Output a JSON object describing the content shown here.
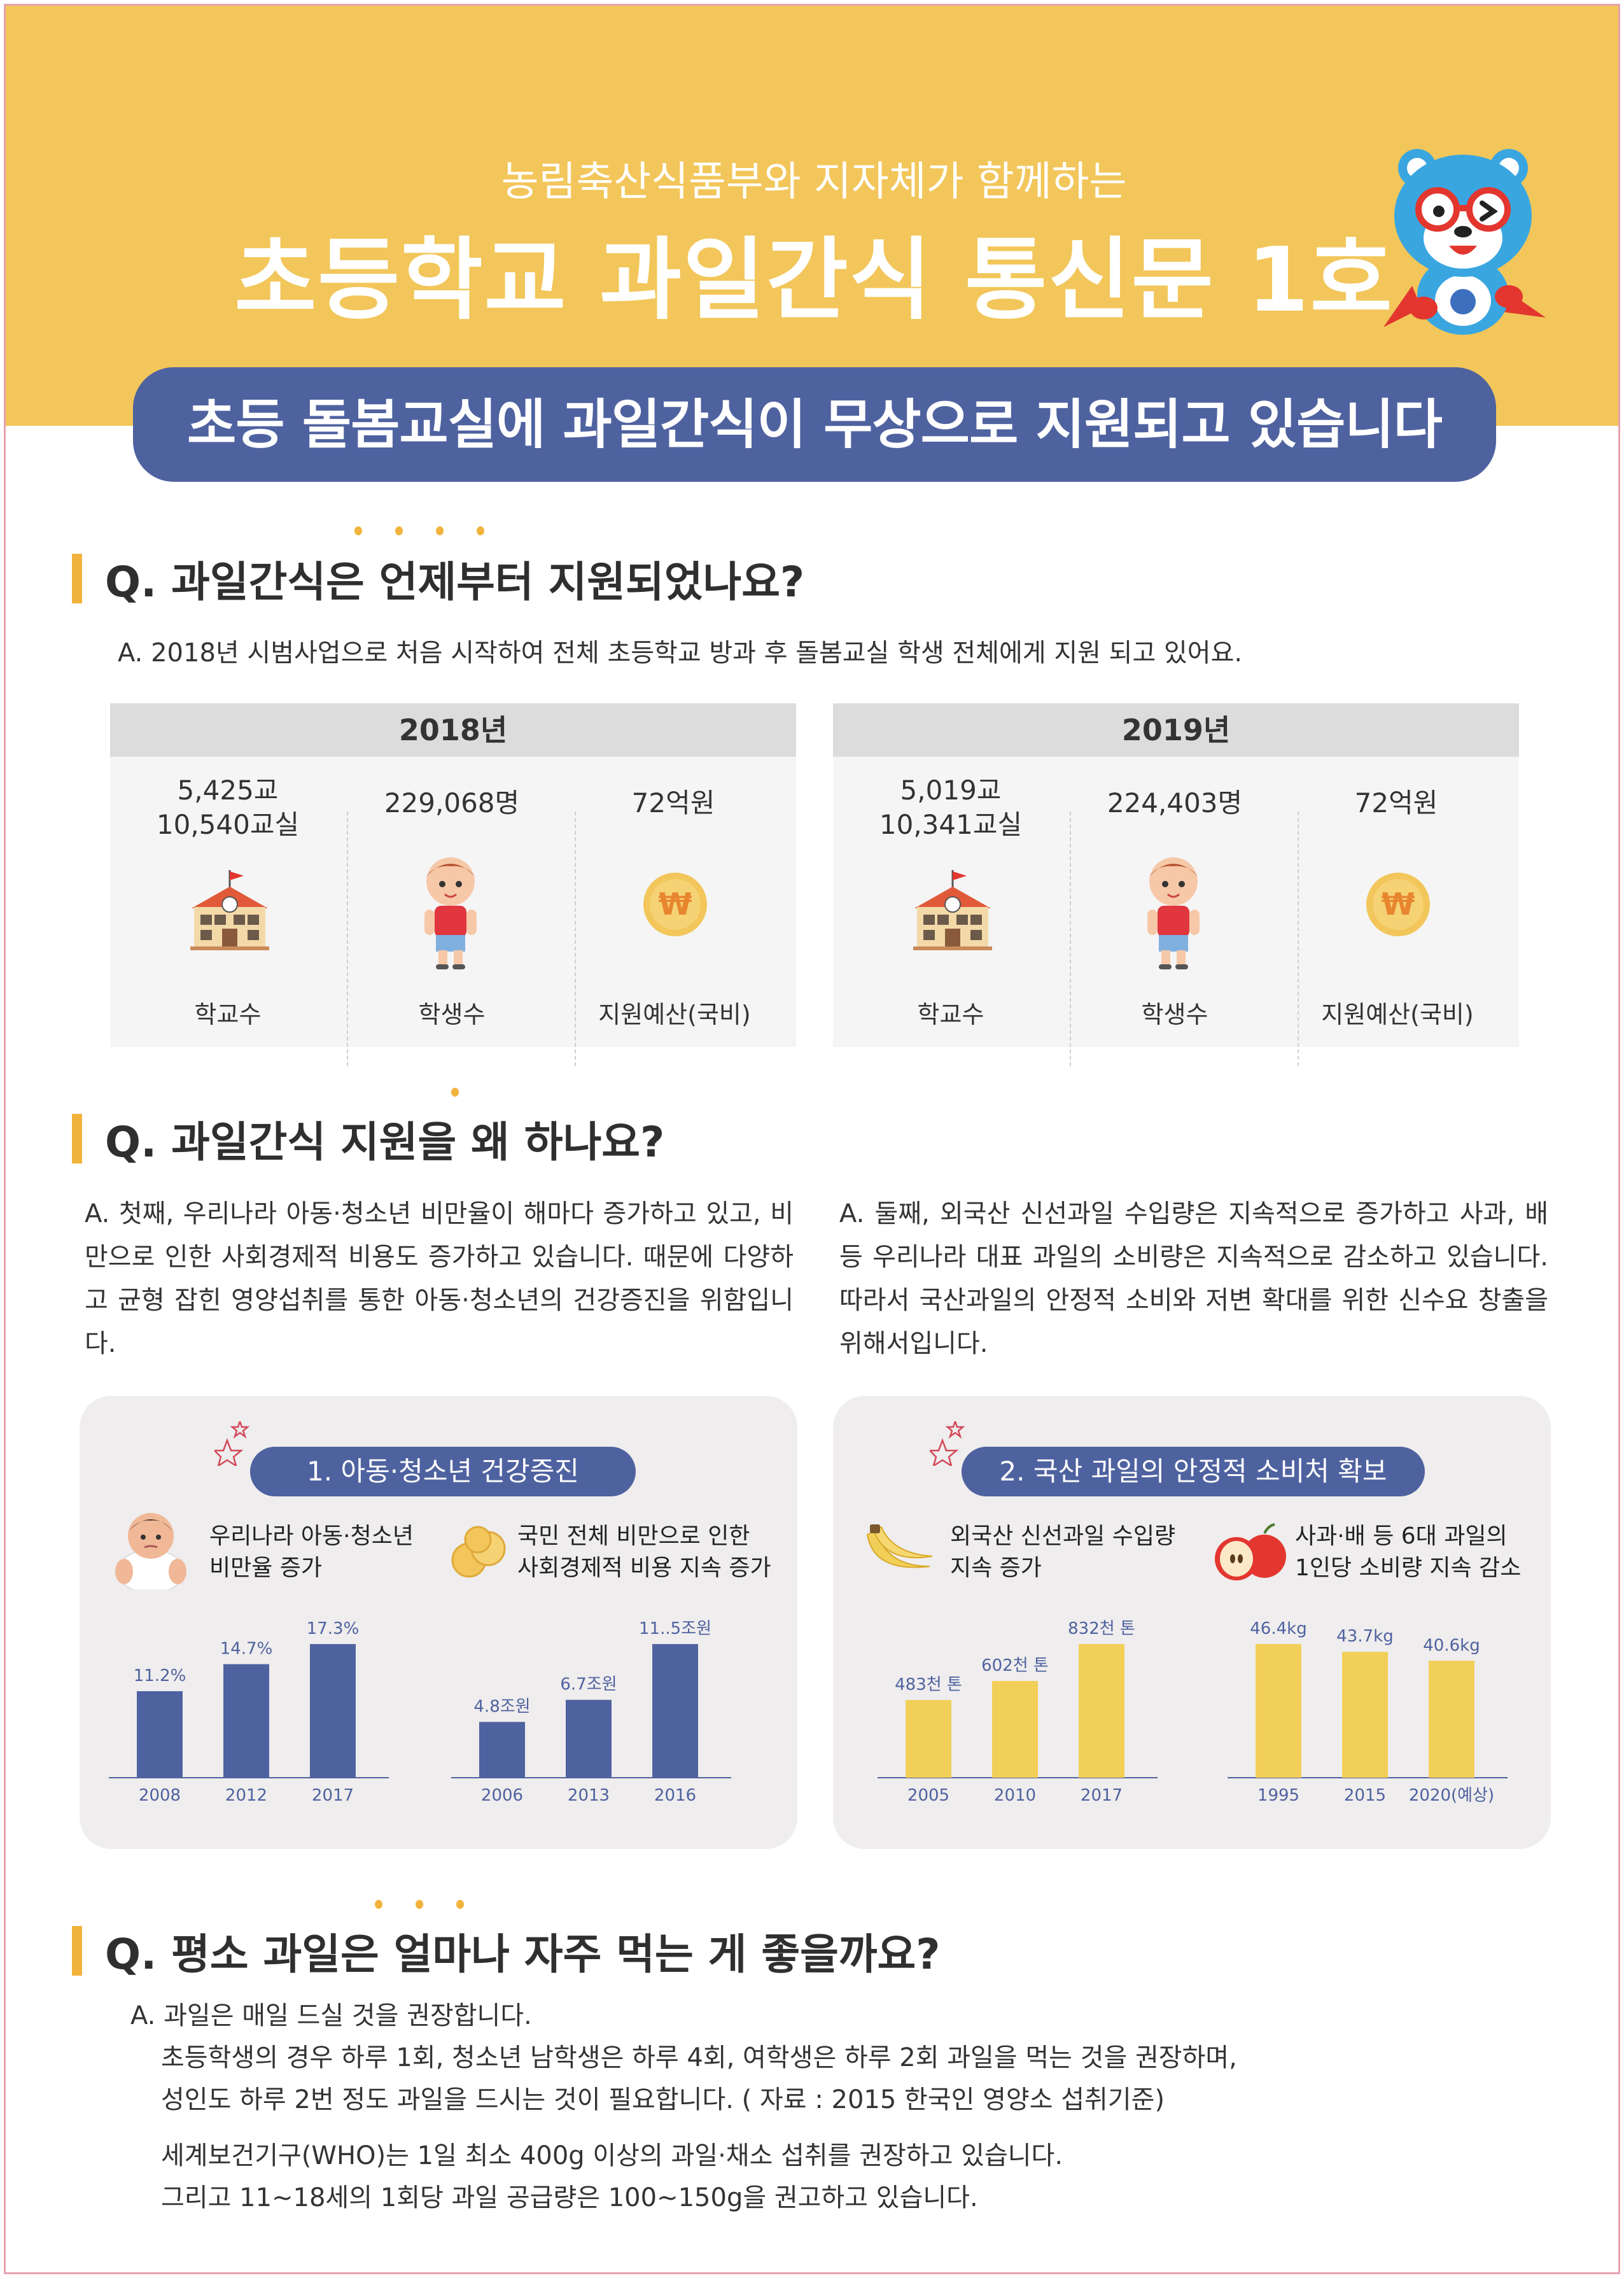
{
  "header": {
    "subtitle": "농림축산식품부와 지자체가 함께하는",
    "title": "초등학교 과일간식 통신문 1호",
    "banner": "초등 돌봄교실에 과일간식이 무상으로 지원되고 있습니다"
  },
  "q1": {
    "question": "Q. 과일간식은 언제부터 지원되었나요?",
    "answer": "A. 2018년 시범사업으로 처음 시작하여 전체 초등학교 방과 후 돌봄교실 학생 전체에게 지원 되고 있어요.",
    "years": [
      {
        "year": "2018년",
        "schools": "5,425교",
        "classes": "10,540교실",
        "students": "229,068명",
        "budget": "72억원"
      },
      {
        "year": "2019년",
        "schools": "5,019교",
        "classes": "10,341교실",
        "students": "224,403명",
        "budget": "72억원"
      }
    ],
    "labels": {
      "schools": "학교수",
      "students": "학생수",
      "budget": "지원예산(국비)"
    }
  },
  "q2": {
    "question": "Q. 과일간식 지원을 왜 하나요?",
    "answer_left": "A. 첫째, 우리나라 아동·청소년 비만율이 해마다 증가하고 있고, 비만으로 인한 사회경제적 비용도 증가하고 있습니다. 때문에 다양하고 균형 잡힌 영양섭취를 통한 아동·청소년의 건강증진을 위함입니다.",
    "answer_right": "A. 둘째, 외국산 신선과일 수입량은 지속적으로 증가하고 사과, 배 등 우리나라 대표 과일의 소비량은 지속적으로 감소하고 있습니다. 따라서 국산과일의 안정적 소비와 저변 확대를 위한 신수요 창출을 위해서입니다.",
    "card1": {
      "title": "1. 아동·청소년 건강증진",
      "item1": [
        "우리나라 아동·청소년",
        "비만율 증가"
      ],
      "item2": [
        "국민 전체 비만으로 인한",
        "사회경제적 비용 지속 증가"
      ]
    },
    "card2": {
      "title": "2. 국산 과일의 안정적 소비처 확보",
      "item1": [
        "외국산 신선과일 수입량",
        "지속 증가"
      ],
      "item2": [
        "사과·배 등 6대 과일의",
        "1인당 소비량 지속 감소"
      ]
    }
  },
  "chart_data": [
    {
      "type": "bar",
      "categories": [
        "2008",
        "2012",
        "2017"
      ],
      "values": [
        11.2,
        14.7,
        17.3
      ],
      "labels": [
        "11.2%",
        "14.7%",
        "17.3%"
      ],
      "color": "#4f62a0"
    },
    {
      "type": "bar",
      "categories": [
        "2006",
        "2013",
        "2016"
      ],
      "values": [
        4.8,
        6.7,
        11.5
      ],
      "labels": [
        "4.8조원",
        "6.7조원",
        "11..5조원"
      ],
      "color": "#4f62a0"
    },
    {
      "type": "bar",
      "categories": [
        "2005",
        "2010",
        "2017"
      ],
      "values": [
        483,
        602,
        832
      ],
      "labels": [
        "483천 톤",
        "602천 톤",
        "832천 톤"
      ],
      "color": "#f2cf58"
    },
    {
      "type": "bar",
      "categories": [
        "1995",
        "2015",
        "2020(예상)"
      ],
      "values": [
        46.4,
        43.7,
        40.6
      ],
      "labels": [
        "46.4kg",
        "43.7kg",
        "40.6kg"
      ],
      "color": "#f2cf58"
    }
  ],
  "q3": {
    "question": "Q. 평소 과일은 얼마나 자주 먹는 게 좋을까요?",
    "lines": [
      "A. 과일은 매일 드실 것을 권장합니다.",
      "초등학생의 경우 하루 1회, 청소년 남학생은 하루 4회, 여학생은 하루 2회 과일을 먹는 것을 권장하며,",
      "성인도 하루 2번 정도 과일을 드시는 것이 필요합니다. ( 자료 : 2015 한국인 영양소 섭취기준)",
      "세계보건기구(WHO)는 1일 최소 400g 이상의 과일·채소 섭취를 권장하고 있습니다.",
      "그리고 11~18세의 1회당 과일 공급량은 100~150g을 권고하고 있습니다."
    ]
  },
  "colors": {
    "accent": "#f2c65a",
    "navy": "#4f62a0",
    "yellow_bar": "#f2cf58",
    "marker": "#f2b33d"
  }
}
